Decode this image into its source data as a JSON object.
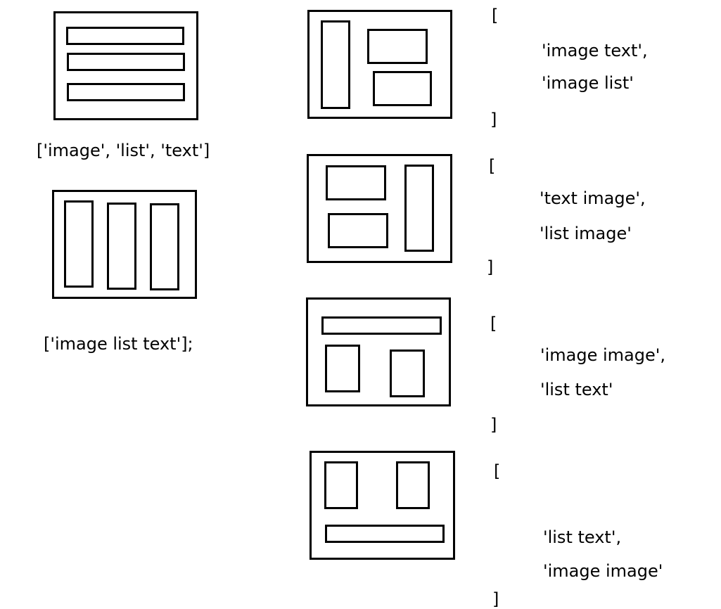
{
  "captions": {
    "three_rows": "['image', 'list', 'text']",
    "three_columns": "['image list text'];"
  },
  "brackets": {
    "open": "[",
    "close": "]"
  },
  "arrays": [
    {
      "items": [
        "'image text',",
        "'image list'"
      ]
    },
    {
      "items": [
        "'text image',",
        "'list image'"
      ]
    },
    {
      "items": [
        "'image image',",
        "'list text'"
      ]
    },
    {
      "items": [
        "'list text',",
        "'image image'"
      ]
    }
  ]
}
